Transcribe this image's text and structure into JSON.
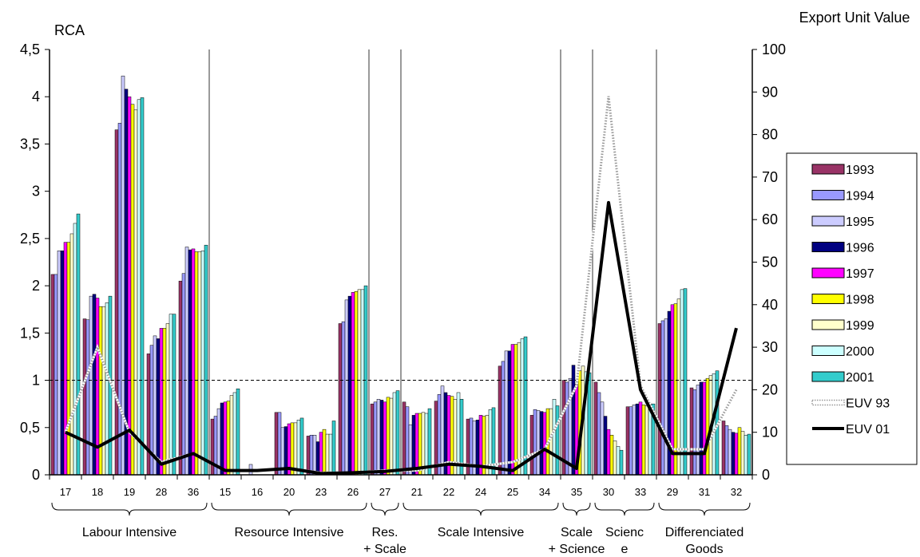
{
  "chart_data": {
    "type": "bar",
    "left_axis_label": "RCA",
    "right_axis_label": "Export Unit Value",
    "ylim_left": [
      0,
      4.5
    ],
    "ylim_right": [
      0,
      100
    ],
    "left_ticks": [
      "0",
      "0,5",
      "1",
      "1,5",
      "2",
      "2,5",
      "3",
      "3,5",
      "4",
      "4,5"
    ],
    "right_ticks": [
      "0",
      "10",
      "20",
      "30",
      "40",
      "50",
      "60",
      "70",
      "80",
      "90",
      "100"
    ],
    "reference_line_rca": 1,
    "categories": [
      "17",
      "18",
      "19",
      "28",
      "36",
      "15",
      "16",
      "20",
      "23",
      "26",
      "27",
      "21",
      "22",
      "24",
      "25",
      "34",
      "35",
      "30",
      "33",
      "29",
      "31",
      "32"
    ],
    "series": [
      {
        "name": "1993",
        "color": "#993366",
        "values": [
          2.12,
          1.65,
          3.65,
          1.28,
          2.05,
          0.59,
          0.0,
          0.66,
          0.41,
          1.6,
          0.75,
          0.77,
          0.78,
          0.59,
          1.15,
          0.63,
          1.0,
          0.98,
          0.72,
          1.6,
          0.92,
          0.57
        ]
      },
      {
        "name": "1994",
        "color": "#9999ff",
        "values": [
          2.12,
          1.64,
          3.72,
          1.37,
          2.13,
          0.62,
          0.0,
          0.66,
          0.42,
          1.62,
          0.77,
          0.72,
          0.85,
          0.6,
          1.2,
          0.69,
          0.98,
          0.87,
          0.72,
          1.63,
          0.9,
          0.52
        ]
      },
      {
        "name": "1995",
        "color": "#ccccff",
        "values": [
          2.37,
          1.89,
          4.22,
          1.47,
          2.41,
          0.7,
          0.11,
          0.5,
          0.42,
          1.85,
          0.8,
          0.53,
          0.94,
          0.57,
          1.31,
          0.68,
          1.02,
          0.77,
          0.74,
          1.65,
          0.95,
          0.48
        ]
      },
      {
        "name": "1996",
        "color": "#000080",
        "values": [
          2.37,
          1.91,
          4.08,
          1.44,
          2.38,
          0.76,
          0.0,
          0.51,
          0.35,
          1.89,
          0.79,
          0.63,
          0.87,
          0.58,
          1.31,
          0.67,
          1.16,
          0.62,
          0.75,
          1.73,
          0.98,
          0.45
        ]
      },
      {
        "name": "1997",
        "color": "#ff00ff",
        "values": [
          2.46,
          1.87,
          4.0,
          1.55,
          2.39,
          0.77,
          0.0,
          0.54,
          0.45,
          1.93,
          0.77,
          0.65,
          0.84,
          0.63,
          1.38,
          0.66,
          0.96,
          0.48,
          0.77,
          1.8,
          0.98,
          0.44
        ]
      },
      {
        "name": "1998",
        "color": "#ffff00",
        "values": [
          2.46,
          1.78,
          3.92,
          1.55,
          2.36,
          0.78,
          0.0,
          0.55,
          0.48,
          1.94,
          0.82,
          0.65,
          0.83,
          0.62,
          1.38,
          0.7,
          1.1,
          0.42,
          0.74,
          1.81,
          1.02,
          0.5
        ]
      },
      {
        "name": "1999",
        "color": "#ffffcc",
        "values": [
          2.55,
          1.78,
          3.86,
          1.6,
          2.36,
          0.84,
          0.0,
          0.55,
          0.43,
          1.96,
          0.81,
          0.66,
          0.8,
          0.63,
          1.4,
          0.7,
          1.15,
          0.36,
          0.73,
          1.86,
          1.05,
          0.46
        ]
      },
      {
        "name": "2000",
        "color": "#ccffff",
        "values": [
          2.66,
          1.82,
          3.97,
          1.7,
          2.37,
          0.87,
          0.0,
          0.58,
          0.43,
          1.96,
          0.87,
          0.65,
          0.87,
          0.69,
          1.44,
          0.8,
          1.09,
          0.3,
          0.75,
          1.96,
          1.07,
          0.42
        ]
      },
      {
        "name": "2001",
        "color": "#33cccc",
        "values": [
          2.76,
          1.89,
          3.99,
          1.7,
          2.43,
          0.91,
          0.0,
          0.6,
          0.57,
          2.0,
          0.89,
          0.7,
          0.8,
          0.71,
          1.46,
          0.73,
          1.08,
          0.26,
          0.75,
          1.97,
          1.1,
          0.43
        ]
      }
    ],
    "lines": [
      {
        "name": "EUV 93",
        "style": "dotted",
        "color": "#999999",
        "values": [
          10,
          30,
          10,
          3,
          5,
          1,
          1,
          1.5,
          0.5,
          0.5,
          1,
          1,
          3,
          2,
          3,
          6,
          21,
          89,
          21,
          6,
          6,
          20
        ]
      },
      {
        "name": "EUV 01",
        "style": "solid",
        "color": "#000000",
        "values": [
          10,
          6.5,
          10.5,
          2.5,
          5,
          1,
          1,
          1.5,
          0.3,
          0.5,
          0.8,
          1.5,
          2.5,
          2,
          1,
          6,
          1.5,
          64,
          20,
          5,
          5,
          34.5
        ]
      }
    ],
    "separators_after": [
      "36",
      "26",
      "27",
      "34",
      "35",
      "33"
    ],
    "groups": [
      {
        "label": "Labour Intensive",
        "from": "17",
        "to": "36"
      },
      {
        "label": "Resource Intensive",
        "from": "15",
        "to": "26"
      },
      {
        "label": "Res.",
        "label2": "+ Scale",
        "from": "27",
        "to": "27"
      },
      {
        "label": "Scale Intensive",
        "from": "21",
        "to": "34"
      },
      {
        "label": "Scale",
        "label2": "+ Science",
        "from": "35",
        "to": "35"
      },
      {
        "label": "Scienc",
        "label2": "e",
        "from": "30",
        "to": "33"
      },
      {
        "label": "Differenciated",
        "label2": "Goods",
        "from": "29",
        "to": "32"
      }
    ],
    "legend_position": "right"
  }
}
